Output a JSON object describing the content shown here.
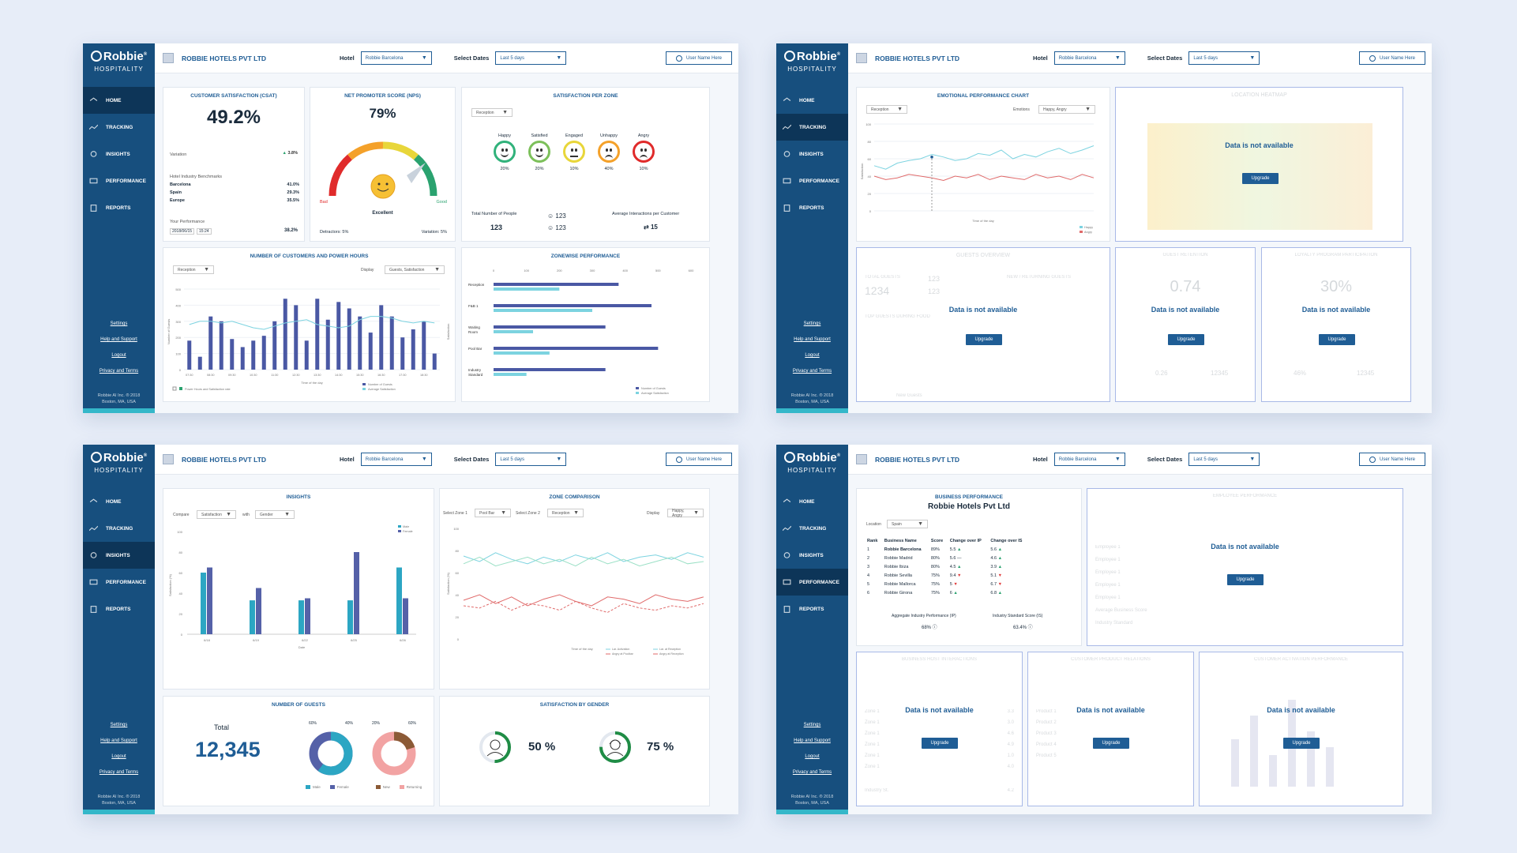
{
  "brand": {
    "logo": "Robbie",
    "trademark": "®",
    "sub": "HOSPITALITY",
    "copyright_line1": "Robbie AI Inc. ® 2018",
    "copyright_line2": "Boston, MA, USA"
  },
  "nav": [
    "HOME",
    "TRACKING",
    "INSIGHTS",
    "PERFORMANCE",
    "REPORTS"
  ],
  "side_links": [
    "Settings",
    "Help and Support",
    "Logout",
    "Privacy and Terms"
  ],
  "header": {
    "company": "ROBBIE HOTELS PVT LTD",
    "hotel_label": "Hotel",
    "hotel_value": "Robbie Barcelona",
    "dates_label": "Select Dates",
    "dates_value": "Last 5 days",
    "user": "User Name Here"
  },
  "common": {
    "not_available": "Data is not available",
    "upgrade": "Upgrade"
  },
  "p1": {
    "csat": {
      "title": "CUSTOMER SATISFACTION (CSAT)",
      "value": "49.2%",
      "variation_label": "Variation",
      "variation": "3.8%",
      "bench_title": "Hotel Industry Benchmarks",
      "bench": [
        [
          "Barcelona",
          "41.0%"
        ],
        [
          "Spain",
          "29.3%"
        ],
        [
          "Europe",
          "35.5%"
        ]
      ],
      "perf_label": "Your Performance",
      "perf": "38.2%",
      "date": "2018/06/15",
      "time": "15:24"
    },
    "nps": {
      "title": "NET PROMOTER SCORE (NPS)",
      "value": "79%",
      "bad": "Bad",
      "good": "Good",
      "excellent": "Excellent",
      "detractors": "Detractors: 5%",
      "variation": "Variation: 5%"
    },
    "zone": {
      "title": "SATISFACTION PER ZONE",
      "select": "Reception",
      "faces": [
        {
          "label": "Happy",
          "pct": "20%"
        },
        {
          "label": "Satisfied",
          "pct": "20%"
        },
        {
          "label": "Engaged",
          "pct": "10%"
        },
        {
          "label": "Unhappy",
          "pct": "40%"
        },
        {
          "label": "Angry",
          "pct": "10%"
        }
      ],
      "people_label": "Total Number of People",
      "people": "123",
      "m1": "123",
      "m2": "123",
      "avg_label": "Average Interactions per Customer",
      "avg": "15"
    },
    "power": {
      "title": "NUMBER OF CUSTOMERS AND POWER HOURS",
      "select": "Reception",
      "display_label": "Display",
      "display": "Guests, Satisfaction",
      "ylabel": "Number of Guests",
      "y2label": "Satisfaction",
      "xlabel": "Time of the day",
      "legend_left": "Power Hours and Satisfaction rate",
      "legend1": "Number of Guests",
      "legend2": "Average Satisfaction",
      "xticks": [
        "07:30",
        "08:00",
        "08:30",
        "09:00",
        "09:30",
        "10:00",
        "10:30",
        "11:00",
        "11:30",
        "12:00",
        "12:30",
        "13:00",
        "13:30",
        "14:00",
        "14:30",
        "15:00",
        "15:30",
        "16:00",
        "16:30",
        "17:00",
        "17:30",
        "18:00",
        "18:30",
        "19:00"
      ],
      "yticks": [
        "0",
        "100",
        "200",
        "300",
        "400",
        "500"
      ]
    },
    "zonewise": {
      "title": "ZONEWISE PERFORMANCE",
      "xticks": [
        "0",
        "100",
        "200",
        "300",
        "400",
        "500",
        "600"
      ],
      "legend1": "Number of Guests",
      "legend2": "Average Satisfaction"
    }
  },
  "p2": {
    "emotional": {
      "title": "EMOTIONAL PERFORMANCE CHART",
      "select": "Reception",
      "emotions_label": "Emotions",
      "emotions": "Happy, Angry",
      "xlabel": "Time of the day",
      "ylabel": "Satisfaction",
      "legend1": "Happy",
      "legend2": "Angry"
    },
    "ghost": {
      "location_title": "LOCATION HEATMAP",
      "guests_title": "GUESTS OVERVIEW",
      "total_guests": "TOTAL GUESTS",
      "total": "1234",
      "new_returning": "NEW / RETURNING GUESTS",
      "top": "TOP GUESTS DURING FOOD",
      "guest_ret": "GUEST RETENTION",
      "ret": "0.74",
      "loyalty": "LOYALTY PROGRAM PARTICIPATION",
      "loy": "30%",
      "v1": "0.26",
      "v2": "12345",
      "v3": "46%",
      "v4": "12345",
      "c1": "123",
      "c2": "123",
      "new_guests": "New Guests"
    }
  },
  "p3": {
    "insights": {
      "title": "INSIGHTS",
      "compare_label": "Compare",
      "compare": "Satisfaction",
      "with_label": "with",
      "with": "Gender",
      "ylabel": "Satisfaction (%)",
      "xlabel": "Date",
      "legend": [
        "Male",
        "Female"
      ],
      "cats": [
        "6/18",
        "6/19",
        "6/22",
        "6/25",
        "6/26"
      ],
      "yticks": [
        "0",
        "20",
        "40",
        "60",
        "80",
        "100"
      ]
    },
    "zonecmp": {
      "title": "ZONE COMPARISON",
      "z1_label": "Select Zone 1",
      "z1": "Pool Bar",
      "z2_label": "Select Zone 2",
      "z2": "Reception",
      "display_label": "Display",
      "display": "Happy, Angry",
      "ylabel": "Satisfaction (%)",
      "xlabel": "Time of the day",
      "leg": [
        "Lar. Activation",
        "Angry at Poolbar",
        "Lar. at Reception",
        "Angry at Reception"
      ]
    },
    "guests": {
      "title": "NUMBER OF GUESTS",
      "total_label": "Total",
      "total": "12,345",
      "d1a": "60%",
      "d1b": "40%",
      "d2a": "20%",
      "d2b": "60%",
      "leg": [
        "Male",
        "Female",
        "New",
        "Returning"
      ]
    },
    "gender": {
      "title": "SATISFACTION BY GENDER",
      "male": "50 %",
      "female": "75 %"
    }
  },
  "p4": {
    "business": {
      "title": "BUSINESS PERFORMANCE",
      "subtitle": "Robbie Hotels Pvt Ltd",
      "location_label": "Location",
      "location": "Spain",
      "cols": [
        "Rank",
        "Business Name",
        "Score",
        "Change over IP",
        "Change over IS"
      ],
      "rows": [
        [
          "1",
          "Robbie Barcelona",
          "89%",
          "5.5",
          "5.6"
        ],
        [
          "2",
          "Robbie Madrid",
          "80%",
          "5.6",
          "4.6"
        ],
        [
          "3",
          "Robbie Ibiza",
          "80%",
          "4.5",
          "3.9"
        ],
        [
          "4",
          "Robbie Sevilla",
          "75%",
          "9.4",
          "5.1"
        ],
        [
          "5",
          "Robbie Mallorca",
          "75%",
          "5",
          "6.7"
        ],
        [
          "6",
          "Robbie Girona",
          "75%",
          "6",
          "6.8"
        ]
      ],
      "agg_label": "Aggregate Industry Performance (IP)",
      "agg": "68%",
      "std_label": "Industry Standard Score (IS)",
      "std": "63.4%"
    },
    "ghost": {
      "emp": "EMPLOYEE PERFORMANCE",
      "emps": [
        "Employee 1",
        "Employee 1",
        "Employee 1",
        "Employee 1",
        "Employee 1"
      ],
      "val": "123",
      "avg": "Average Business Score",
      "ind": "Industry Standard",
      "bh": "BUSINESS HOST INTERACTIONS",
      "cp": "CUSTOMER PRODUCT RELATIONS",
      "ca": "CUSTOMER ACTIVATION PERFORMANCE",
      "zones": [
        "Zone 1",
        "Zone 1",
        "Zone 1",
        "Zone 1",
        "Zone 1",
        "Zone 1"
      ],
      "products": [
        "Product 1",
        "Product 2",
        "Product 3",
        "Product 4",
        "Product 5"
      ],
      "nums": [
        "3.3",
        "3.0",
        "4.6",
        "4.9",
        "1.0",
        "4.0"
      ],
      "ind_st": "Industry St.",
      "ind_val": "4.2"
    }
  }
}
